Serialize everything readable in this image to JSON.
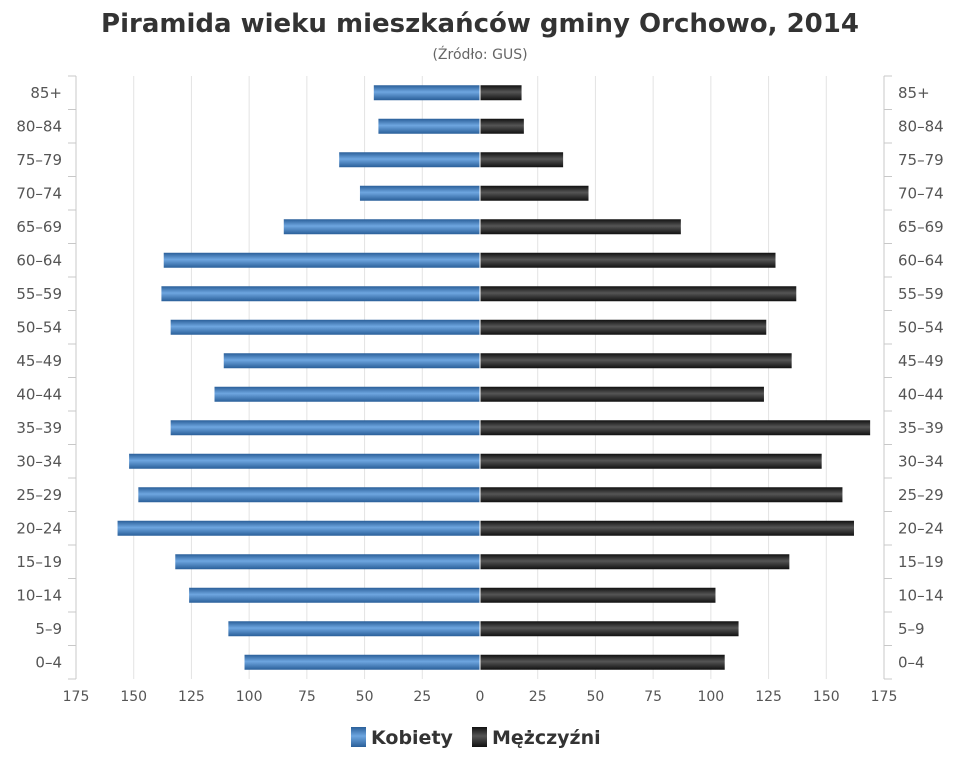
{
  "chart_data": {
    "type": "bar",
    "orientation": "horizontal",
    "title": "Piramida wieku mieszkańców gminy Orchowo, 2014",
    "subtitle": "(Źródło: GUS)",
    "categories": [
      "85+",
      "80–84",
      "75–79",
      "70–74",
      "65–69",
      "60–64",
      "55–59",
      "50–54",
      "45–49",
      "40–44",
      "35–39",
      "30–34",
      "25–29",
      "20–24",
      "15–19",
      "10–14",
      "5–9",
      "0–4"
    ],
    "series": [
      {
        "name": "Kobiety",
        "side": "left",
        "values": [
          46,
          44,
          61,
          52,
          85,
          137,
          138,
          134,
          111,
          115,
          134,
          152,
          148,
          157,
          132,
          126,
          109,
          102
        ]
      },
      {
        "name": "Mężczyźni",
        "side": "right",
        "values": [
          18,
          19,
          36,
          47,
          87,
          128,
          137,
          124,
          135,
          123,
          169,
          148,
          157,
          162,
          134,
          102,
          112,
          106
        ]
      }
    ],
    "xlim": [
      -175,
      175
    ],
    "x_ticks": [
      "175",
      "150",
      "125",
      "100",
      "75",
      "50",
      "25",
      "0",
      "25",
      "50",
      "75",
      "100",
      "125",
      "150",
      "175"
    ],
    "grid": true,
    "legend": "bottom-center",
    "colors": {
      "kobiety": "#4a86c5",
      "kobiety_dark": "#2a5f99",
      "mezczyzni": "#222222",
      "mezczyzni_light": "#4a4a4a",
      "grid": "#e3e3e3",
      "axis": "#c8c8c8"
    }
  }
}
